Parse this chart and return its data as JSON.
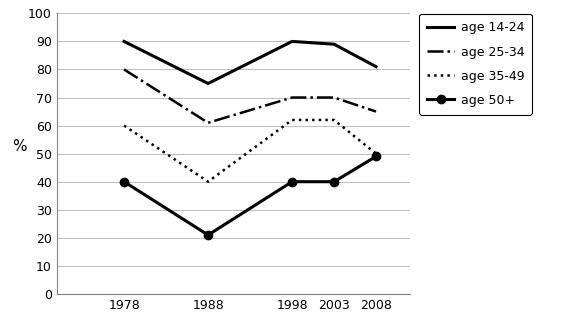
{
  "years": [
    1978,
    1988,
    1998,
    2003,
    2008
  ],
  "series": [
    {
      "label": "age 14-24",
      "values": [
        90,
        75,
        90,
        89,
        81
      ],
      "linestyle": "-",
      "linewidth": 2.2,
      "color": "#000000",
      "marker": "None",
      "markersize": 0
    },
    {
      "label": "age 25-34",
      "values": [
        80,
        61,
        70,
        70,
        65
      ],
      "linestyle": "-.",
      "linewidth": 1.8,
      "color": "#000000",
      "marker": "None",
      "markersize": 0
    },
    {
      "label": "age 35-49",
      "values": [
        60,
        40,
        62,
        62,
        50
      ],
      "linestyle": ":",
      "linewidth": 1.8,
      "color": "#000000",
      "marker": "None",
      "markersize": 0
    },
    {
      "label": "age 50+",
      "values": [
        40,
        21,
        40,
        40,
        49
      ],
      "linestyle": "-",
      "linewidth": 2.2,
      "color": "#000000",
      "marker": "o",
      "markersize": 6
    }
  ],
  "ylabel": "%",
  "ylim": [
    0,
    100
  ],
  "yticks": [
    0,
    10,
    20,
    30,
    40,
    50,
    60,
    70,
    80,
    90,
    100
  ],
  "grid_color": "#c0c0c0",
  "background_color": "#ffffff",
  "tick_fontsize": 9,
  "ylabel_fontsize": 11,
  "legend_fontsize": 9
}
